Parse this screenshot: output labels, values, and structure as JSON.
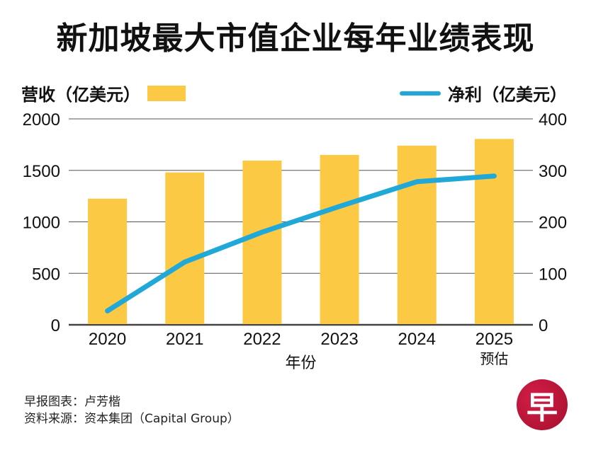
{
  "title": "新加坡最大市值企业每年业绩表现",
  "legend": {
    "left_label": "营收（亿美元）",
    "right_label": "净利（亿美元）"
  },
  "colors": {
    "bar": "#fbc943",
    "line": "#1fa8d8",
    "grid": "#555555",
    "logo": "#c0153a"
  },
  "chart_data": {
    "type": "bar",
    "title": "新加坡最大市值企业每年业绩表现",
    "xlabel": "年份",
    "ylabel": "营收（亿美元）",
    "y2label": "净利（亿美元）",
    "categories": [
      "2020",
      "2021",
      "2022",
      "2023",
      "2024",
      "2025"
    ],
    "category_sublabels": [
      "",
      "",
      "",
      "",
      "",
      "预估"
    ],
    "ylim": [
      0,
      2000
    ],
    "y2lim": [
      0,
      400
    ],
    "yticks": [
      "0",
      "500",
      "1000",
      "1500",
      "2000"
    ],
    "y2ticks": [
      "0",
      "100",
      "200",
      "300",
      "400"
    ],
    "grid": true,
    "legend_placement": "top",
    "series": [
      {
        "name": "营收（亿美元）",
        "type": "bar",
        "axis": "left",
        "values": [
          1225,
          1480,
          1595,
          1650,
          1740,
          1805
        ]
      },
      {
        "name": "净利（亿美元）",
        "type": "line",
        "axis": "right",
        "values": [
          27,
          122,
          180,
          230,
          278,
          289
        ]
      }
    ]
  },
  "footer": {
    "credit": "早报图表：卢芳楷",
    "source": "资料来源：资本集团（Capital Group）"
  },
  "logo": {
    "glyph": "早",
    "icon": "zaobao-logo-icon"
  }
}
